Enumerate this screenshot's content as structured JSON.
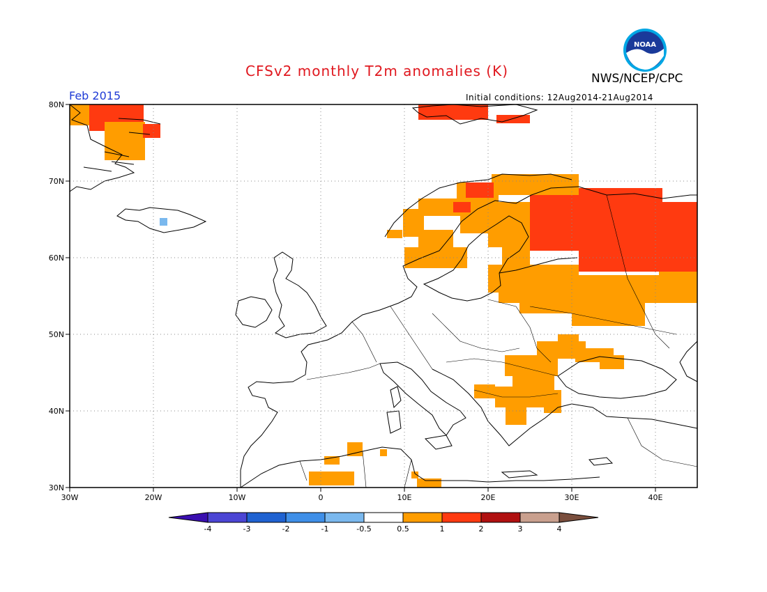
{
  "title": "CFSv2 monthly T2m anomalies (K)",
  "agency": "NWS/NCEP/CPC",
  "logo_text": "NOAA",
  "valid_month": "Feb 2015",
  "initial_conditions": "Initial conditions: 12Aug2014-21Aug2014",
  "map": {
    "lon_range": [
      -30,
      45
    ],
    "lat_range": [
      30,
      80
    ],
    "lon_ticks": [
      "30W",
      "20W",
      "10W",
      "0",
      "10E",
      "20E",
      "30E",
      "40E"
    ],
    "lat_ticks": [
      "30N",
      "40N",
      "50N",
      "60N",
      "70N",
      "80N"
    ],
    "gridlines": true
  },
  "colorbar": {
    "labels": [
      "-4",
      "-3",
      "-2",
      "-1",
      "-0.5",
      "0.5",
      "1",
      "2",
      "3",
      "4"
    ],
    "colors": [
      "#3a0fb0",
      "#4b45d4",
      "#1f62d1",
      "#3f8fe8",
      "#7ab8ee",
      "#ffffff",
      "#ff9d00",
      "#ff3a10",
      "#b01010",
      "#c9a08e",
      "#7a4e3d"
    ]
  },
  "anomaly_colors": {
    "orange": "#ff9d00",
    "red": "#ff3a10",
    "lightblue": "#7ab8ee"
  }
}
